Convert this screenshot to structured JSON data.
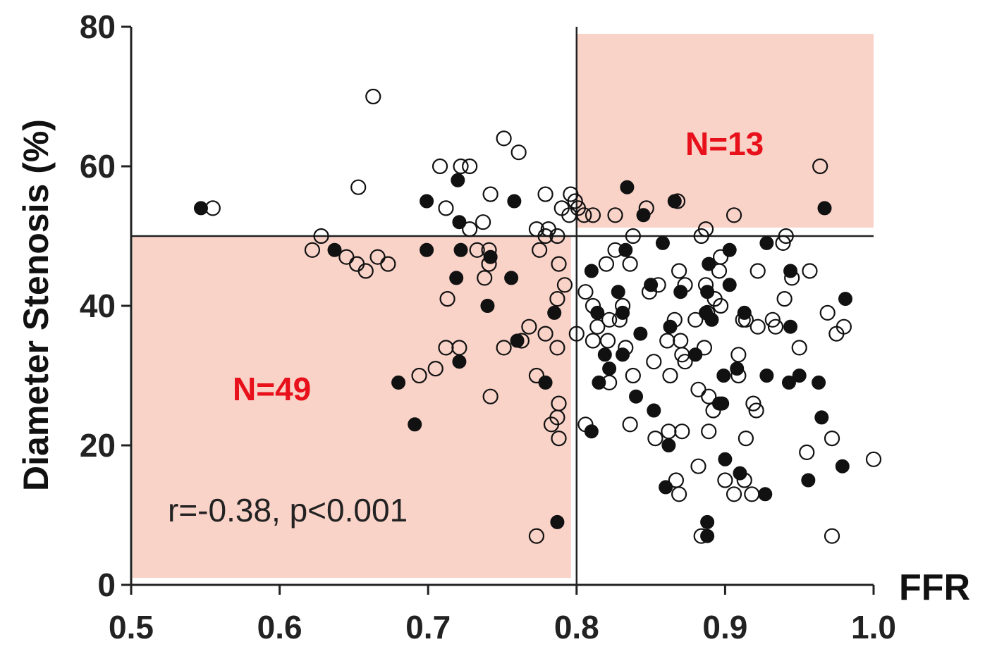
{
  "chart_data": {
    "type": "scatter",
    "xlabel": "FFR",
    "ylabel": "Diameter Stenosis (%)",
    "xlim": [
      0.5,
      1.0
    ],
    "ylim": [
      0,
      80
    ],
    "x_ticks": [
      "0.5",
      "0.6",
      "0.7",
      "0.8",
      "0.9",
      "1.0"
    ],
    "y_ticks": [
      "0",
      "20",
      "40",
      "60",
      "80"
    ],
    "thresholds": {
      "ffr": 0.8,
      "stenosis": 50
    },
    "shaded_regions": [
      {
        "label": "N=49",
        "x": [
          0.5,
          0.8
        ],
        "y": [
          0,
          50
        ],
        "color": "#f9d2c8"
      },
      {
        "label": "N=13",
        "x": [
          0.8,
          1.0
        ],
        "y": [
          50,
          80
        ],
        "color": "#f9d2c8"
      }
    ],
    "annotation": "r=-0.38, p<0.001",
    "series": [
      {
        "marker": "open circle",
        "points": [
          [
            0.555,
            54
          ],
          [
            0.628,
            50
          ],
          [
            0.622,
            48
          ],
          [
            0.645,
            47
          ],
          [
            0.652,
            46
          ],
          [
            0.658,
            45
          ],
          [
            0.666,
            47
          ],
          [
            0.673,
            46
          ],
          [
            0.653,
            57
          ],
          [
            0.663,
            70
          ],
          [
            0.708,
            60
          ],
          [
            0.722,
            60
          ],
          [
            0.728,
            60
          ],
          [
            0.712,
            54
          ],
          [
            0.737,
            52
          ],
          [
            0.728,
            51
          ],
          [
            0.751,
            64
          ],
          [
            0.761,
            62
          ],
          [
            0.742,
            56
          ],
          [
            0.733,
            48
          ],
          [
            0.741,
            48
          ],
          [
            0.741,
            46
          ],
          [
            0.738,
            44
          ],
          [
            0.713,
            41
          ],
          [
            0.712,
            34
          ],
          [
            0.721,
            34
          ],
          [
            0.751,
            34
          ],
          [
            0.705,
            31
          ],
          [
            0.694,
            30
          ],
          [
            0.742,
            27
          ],
          [
            0.779,
            56
          ],
          [
            0.796,
            56
          ],
          [
            0.79,
            54
          ],
          [
            0.799,
            55
          ],
          [
            0.795,
            53
          ],
          [
            0.801,
            54
          ],
          [
            0.805,
            53
          ],
          [
            0.811,
            53
          ],
          [
            0.826,
            53
          ],
          [
            0.773,
            51
          ],
          [
            0.781,
            51
          ],
          [
            0.779,
            50
          ],
          [
            0.787,
            50
          ],
          [
            0.775,
            48
          ],
          [
            0.788,
            46
          ],
          [
            0.792,
            43
          ],
          [
            0.787,
            41
          ],
          [
            0.768,
            37
          ],
          [
            0.763,
            35
          ],
          [
            0.779,
            36
          ],
          [
            0.787,
            34
          ],
          [
            0.773,
            30
          ],
          [
            0.788,
            26
          ],
          [
            0.787,
            24
          ],
          [
            0.783,
            23
          ],
          [
            0.788,
            21
          ],
          [
            0.773,
            7
          ],
          [
            0.8,
            36
          ],
          [
            0.806,
            42
          ],
          [
            0.811,
            40
          ],
          [
            0.814,
            37
          ],
          [
            0.822,
            38
          ],
          [
            0.821,
            35
          ],
          [
            0.829,
            38
          ],
          [
            0.831,
            40
          ],
          [
            0.82,
            46
          ],
          [
            0.826,
            48
          ],
          [
            0.836,
            46
          ],
          [
            0.838,
            50
          ],
          [
            0.811,
            35
          ],
          [
            0.833,
            34
          ],
          [
            0.838,
            30
          ],
          [
            0.822,
            29
          ],
          [
            0.806,
            23
          ],
          [
            0.836,
            23
          ],
          [
            0.849,
            42
          ],
          [
            0.855,
            43
          ],
          [
            0.852,
            32
          ],
          [
            0.863,
            30
          ],
          [
            0.866,
            38
          ],
          [
            0.861,
            35
          ],
          [
            0.847,
            54
          ],
          [
            0.884,
            50
          ],
          [
            0.88,
            38
          ],
          [
            0.873,
            43
          ],
          [
            0.87,
            35
          ],
          [
            0.871,
            33
          ],
          [
            0.869,
            45
          ],
          [
            0.873,
            32
          ],
          [
            0.886,
            34
          ],
          [
            0.888,
            39
          ],
          [
            0.887,
            43
          ],
          [
            0.897,
            40
          ],
          [
            0.887,
            51
          ],
          [
            0.906,
            53
          ],
          [
            0.897,
            47
          ],
          [
            0.896,
            45
          ],
          [
            0.893,
            41
          ],
          [
            0.882,
            28
          ],
          [
            0.889,
            27
          ],
          [
            0.889,
            22
          ],
          [
            0.892,
            25
          ],
          [
            0.862,
            22
          ],
          [
            0.871,
            22
          ],
          [
            0.853,
            21
          ],
          [
            0.882,
            17
          ],
          [
            0.867,
            15
          ],
          [
            0.869,
            13
          ],
          [
            0.884,
            7
          ],
          [
            0.9,
            15
          ],
          [
            0.906,
            13
          ],
          [
            0.909,
            30
          ],
          [
            0.909,
            33
          ],
          [
            0.914,
            38
          ],
          [
            0.912,
            38
          ],
          [
            0.922,
            45
          ],
          [
            0.922,
            37
          ],
          [
            0.919,
            26
          ],
          [
            0.921,
            25
          ],
          [
            0.914,
            21
          ],
          [
            0.913,
            15
          ],
          [
            0.918,
            13
          ],
          [
            0.934,
            37
          ],
          [
            0.932,
            38
          ],
          [
            0.939,
            49
          ],
          [
            0.941,
            50
          ],
          [
            0.945,
            44
          ],
          [
            0.95,
            34
          ],
          [
            0.94,
            41
          ],
          [
            0.957,
            45
          ],
          [
            0.955,
            19
          ],
          [
            0.964,
            60
          ],
          [
            0.969,
            39
          ],
          [
            0.972,
            21
          ],
          [
            0.975,
            36
          ],
          [
            0.98,
            37
          ],
          [
            0.972,
            7
          ],
          [
            1.0,
            18
          ],
          [
            0.868,
            55
          ]
        ]
      },
      {
        "marker": "filled circle",
        "points": [
          [
            0.547,
            54
          ],
          [
            0.637,
            48
          ],
          [
            0.699,
            55
          ],
          [
            0.72,
            58
          ],
          [
            0.758,
            55
          ],
          [
            0.721,
            52
          ],
          [
            0.699,
            48
          ],
          [
            0.722,
            48
          ],
          [
            0.742,
            47
          ],
          [
            0.756,
            44
          ],
          [
            0.719,
            44
          ],
          [
            0.74,
            40
          ],
          [
            0.785,
            39
          ],
          [
            0.76,
            35
          ],
          [
            0.721,
            32
          ],
          [
            0.68,
            29
          ],
          [
            0.779,
            29
          ],
          [
            0.691,
            23
          ],
          [
            0.787,
            9
          ],
          [
            0.834,
            57
          ],
          [
            0.845,
            53
          ],
          [
            0.866,
            55
          ],
          [
            0.967,
            54
          ],
          [
            0.833,
            48
          ],
          [
            0.81,
            45
          ],
          [
            0.814,
            39
          ],
          [
            0.828,
            42
          ],
          [
            0.831,
            39
          ],
          [
            0.819,
            33
          ],
          [
            0.822,
            31
          ],
          [
            0.815,
            29
          ],
          [
            0.81,
            22
          ],
          [
            0.831,
            33
          ],
          [
            0.84,
            27
          ],
          [
            0.843,
            36
          ],
          [
            0.85,
            43
          ],
          [
            0.858,
            49
          ],
          [
            0.863,
            37
          ],
          [
            0.87,
            42
          ],
          [
            0.852,
            25
          ],
          [
            0.862,
            20
          ],
          [
            0.86,
            14
          ],
          [
            0.88,
            33
          ],
          [
            0.889,
            46
          ],
          [
            0.888,
            42
          ],
          [
            0.887,
            39
          ],
          [
            0.891,
            38
          ],
          [
            0.903,
            48
          ],
          [
            0.903,
            43
          ],
          [
            0.913,
            39
          ],
          [
            0.899,
            30
          ],
          [
            0.898,
            26
          ],
          [
            0.896,
            26
          ],
          [
            0.908,
            31
          ],
          [
            0.9,
            18
          ],
          [
            0.91,
            16
          ],
          [
            0.888,
            9
          ],
          [
            0.888,
            7
          ],
          [
            0.928,
            49
          ],
          [
            0.944,
            45
          ],
          [
            0.944,
            37
          ],
          [
            0.928,
            30
          ],
          [
            0.95,
            30
          ],
          [
            0.943,
            29
          ],
          [
            0.963,
            29
          ],
          [
            0.927,
            13
          ],
          [
            0.965,
            24
          ],
          [
            0.956,
            15
          ],
          [
            0.981,
            41
          ],
          [
            0.979,
            17
          ]
        ]
      }
    ]
  }
}
